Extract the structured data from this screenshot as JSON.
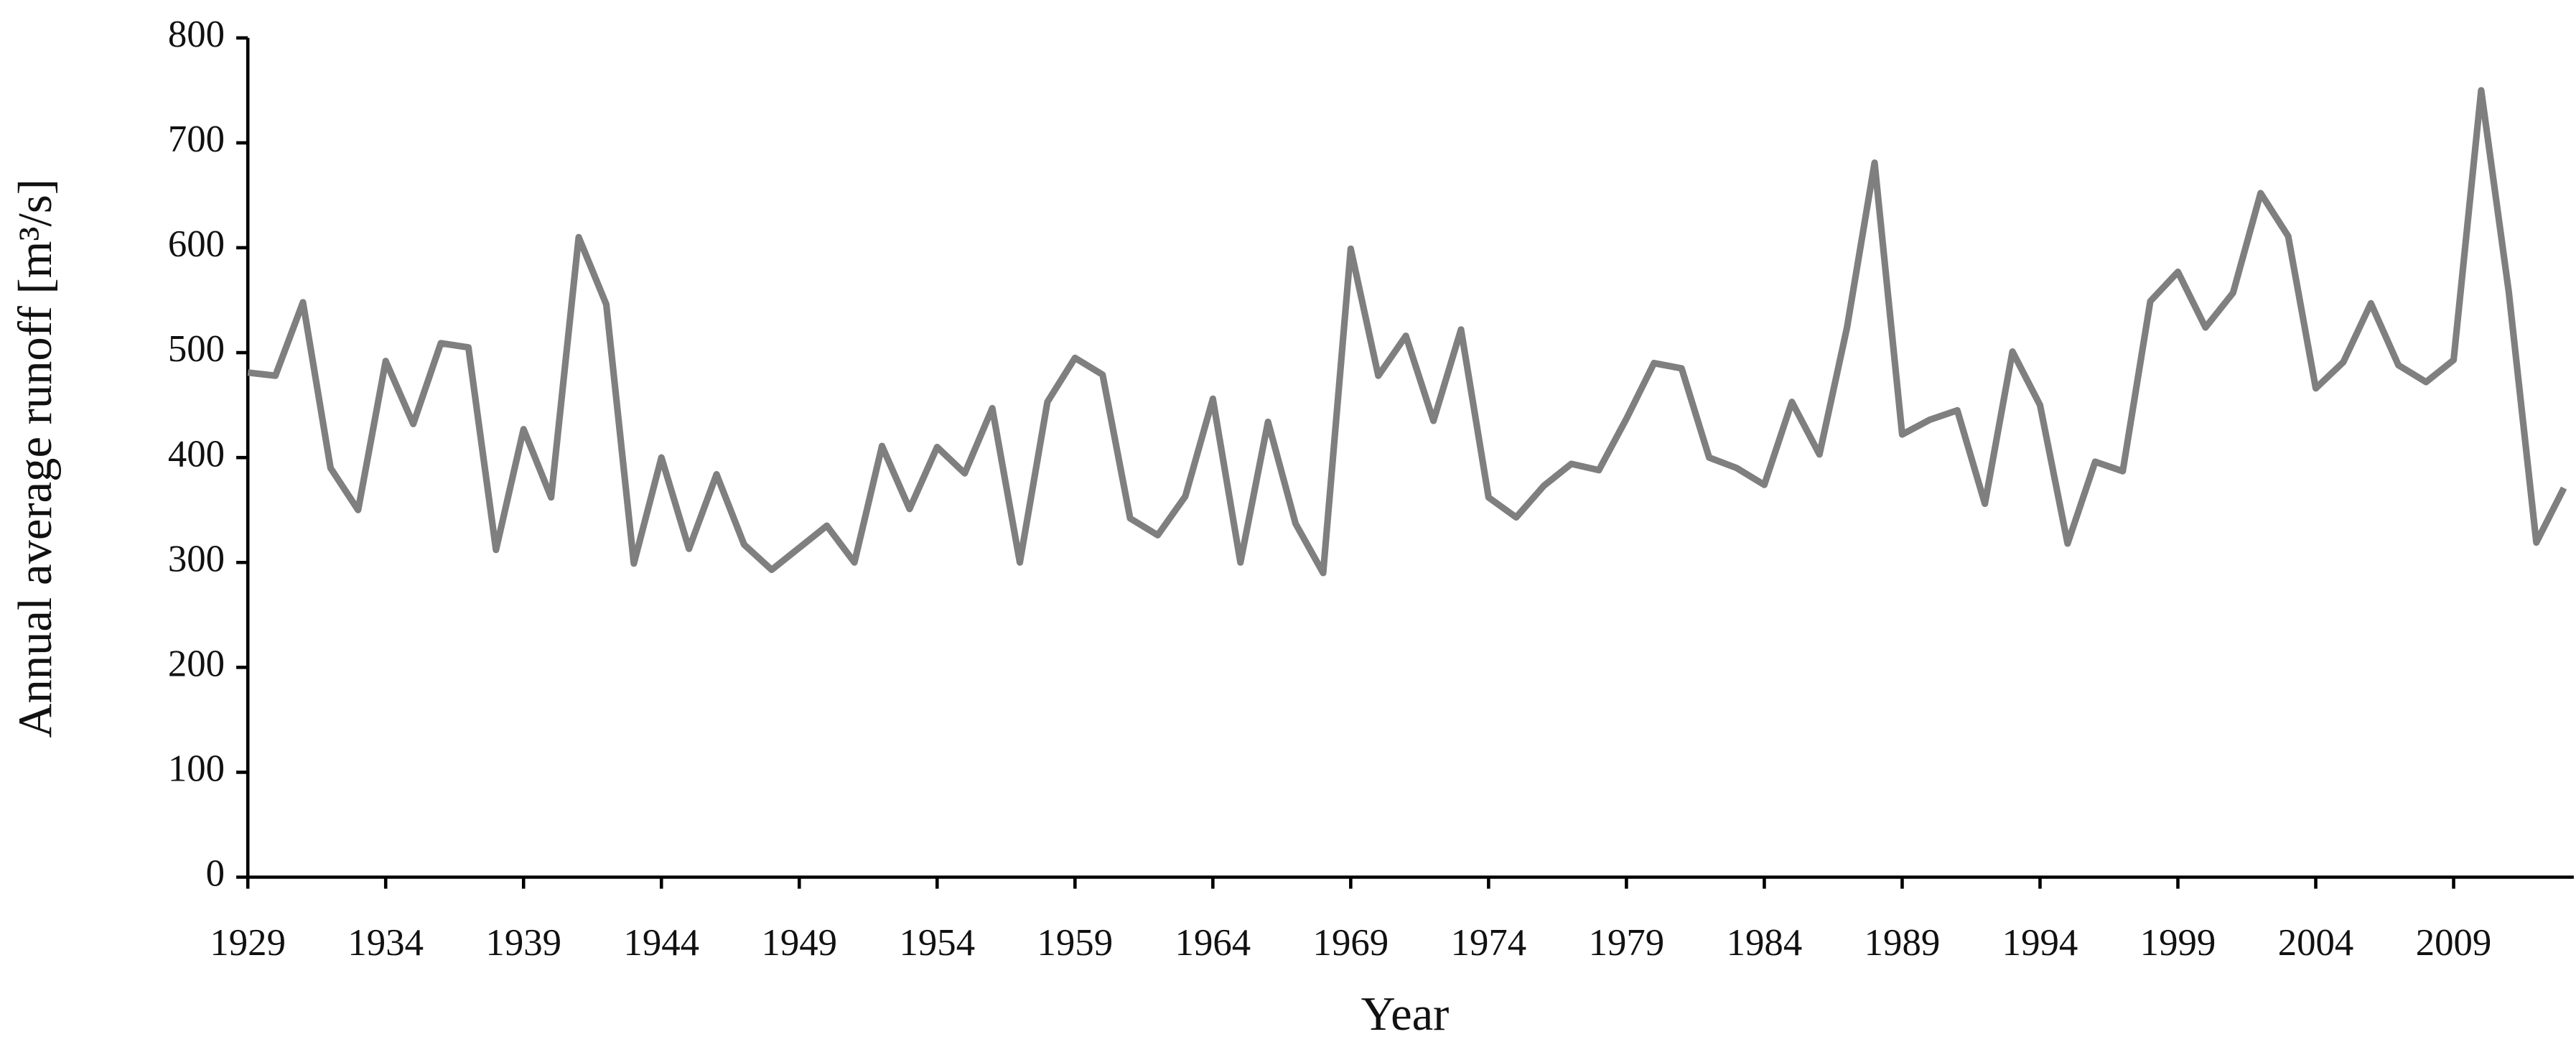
{
  "chart_data": {
    "type": "line",
    "x_label": "Year",
    "y_label": "Annual average runoff [m³/s]",
    "x": [
      1929,
      1930,
      1931,
      1932,
      1933,
      1934,
      1935,
      1936,
      1937,
      1938,
      1939,
      1940,
      1941,
      1942,
      1943,
      1944,
      1945,
      1946,
      1947,
      1948,
      1949,
      1950,
      1951,
      1952,
      1953,
      1954,
      1955,
      1956,
      1957,
      1958,
      1959,
      1960,
      1961,
      1962,
      1963,
      1964,
      1965,
      1966,
      1967,
      1968,
      1969,
      1970,
      1971,
      1972,
      1973,
      1974,
      1975,
      1976,
      1977,
      1978,
      1979,
      1980,
      1981,
      1982,
      1983,
      1984,
      1985,
      1986,
      1987,
      1988,
      1989,
      1990,
      1991,
      1992,
      1993,
      1994,
      1995,
      1996,
      1997,
      1998,
      1999,
      2000,
      2001,
      2002,
      2003,
      2004,
      2005,
      2006,
      2007,
      2008,
      2009,
      2010,
      2011,
      2012,
      2013
    ],
    "series": [
      {
        "color": "#7f7f7f",
        "values": [
          481,
          478,
          548,
          390,
          350,
          492,
          432,
          509,
          505,
          312,
          427,
          362,
          610,
          546,
          299,
          400,
          313,
          384,
          317,
          293,
          314,
          335,
          300,
          411,
          351,
          410,
          385,
          447,
          300,
          453,
          495,
          479,
          342,
          326,
          363,
          456,
          300,
          434,
          337,
          290,
          599,
          478,
          516,
          435,
          522,
          362,
          343,
          373,
          394,
          388,
          437,
          490,
          485,
          400,
          390,
          374,
          453,
          403,
          524,
          681,
          422,
          436,
          445,
          356,
          501,
          450,
          318,
          396,
          387,
          549,
          577,
          524,
          557,
          652,
          611,
          466,
          491,
          547,
          488,
          472,
          493,
          750,
          558,
          319,
          371
        ]
      }
    ],
    "xlim": [
      1929,
      2013
    ],
    "xticks": [
      1929,
      1934,
      1939,
      1944,
      1949,
      1954,
      1959,
      1964,
      1969,
      1974,
      1979,
      1984,
      1989,
      1994,
      1999,
      2004,
      2009
    ],
    "ylim": [
      0,
      800
    ],
    "yticks": [
      0,
      100,
      200,
      300,
      400,
      500,
      600,
      700,
      800
    ],
    "grid": false
  }
}
